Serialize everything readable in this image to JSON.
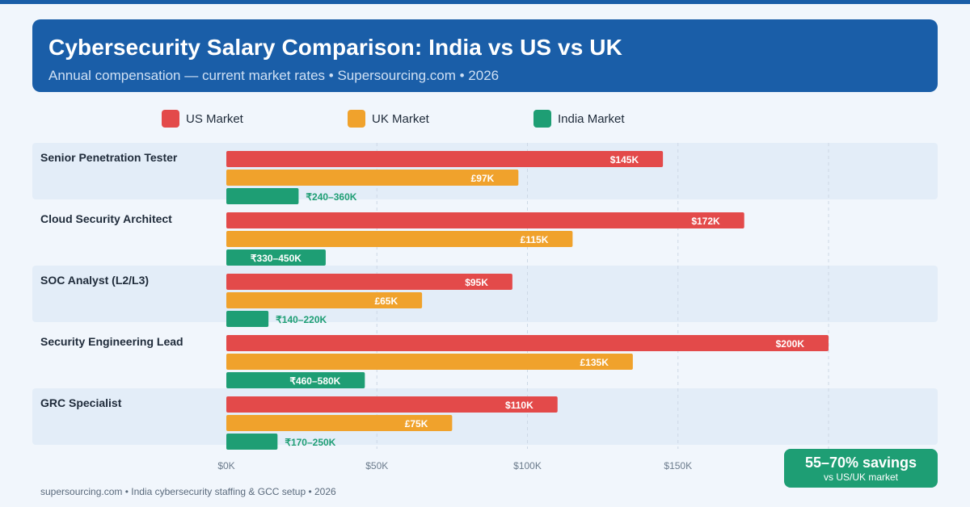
{
  "header": {
    "title": "Cybersecurity Salary Comparison: India vs US vs UK",
    "subtitle": "Annual compensation — current market rates  •  Supersourcing.com  •  2026"
  },
  "colors": {
    "us": "#e34a4a",
    "uk": "#f0a22c",
    "india": "#1e9e74",
    "header": "#1a5ea8"
  },
  "chart_data": {
    "type": "bar",
    "orientation": "horizontal",
    "title": "Cybersecurity Salary Comparison: India vs US vs UK",
    "categories": [
      "Senior Penetration Tester",
      "Cloud Security Architect",
      "SOC Analyst (L2/L3)",
      "Security Engineering Lead",
      "GRC Specialist"
    ],
    "series": [
      {
        "name": "US Market",
        "color": "#e34a4a",
        "values": [
          145,
          172,
          95,
          200,
          110
        ],
        "labels": [
          "$145K",
          "$172K",
          "$95K",
          "$200K",
          "$110K"
        ],
        "label_position": "inside"
      },
      {
        "name": "UK Market",
        "color": "#f0a22c",
        "values": [
          97,
          115,
          65,
          135,
          75
        ],
        "labels": [
          "£97K",
          "£115K",
          "£65K",
          "£135K",
          "£75K"
        ],
        "label_position": "inside"
      },
      {
        "name": "India Market",
        "color": "#1e9e74",
        "values": [
          24,
          33,
          14,
          46,
          17
        ],
        "labels": [
          "₹240–360K",
          "₹330–450K",
          "₹140–220K",
          "₹460–580K",
          "₹170–250K"
        ],
        "label_position": [
          "outside",
          "inside",
          "outside",
          "inside",
          "outside"
        ]
      }
    ],
    "x_ticks": [
      0,
      50,
      100,
      150
    ],
    "x_tick_labels": [
      "$0K",
      "$50K",
      "$100K",
      "$150K"
    ],
    "xlim": [
      0,
      200
    ],
    "grid": true,
    "legend": "top"
  },
  "callout": {
    "main": "55–70% savings",
    "sub": "vs US/UK market"
  },
  "footer": {
    "text": "supersourcing.com  •  India cybersecurity staffing & GCC setup  •  2026"
  }
}
